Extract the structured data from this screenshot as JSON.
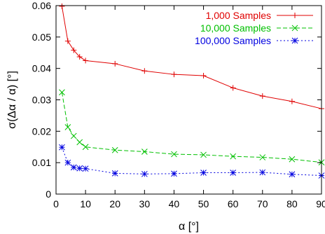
{
  "chart_data": {
    "type": "line",
    "xlabel": "α [°]",
    "ylabel": "σ(Δα / α) [°]",
    "xlim": [
      0,
      90
    ],
    "ylim": [
      0,
      0.06
    ],
    "xticks": [
      "0",
      "10",
      "20",
      "30",
      "40",
      "50",
      "60",
      "70",
      "80",
      "90"
    ],
    "yticks": [
      "0",
      "0.01",
      "0.02",
      "0.03",
      "0.04",
      "0.05",
      "0.06"
    ],
    "grid": false,
    "legend_position": "top-right",
    "series": [
      {
        "name": "1,000 Samples",
        "color": "#e00000",
        "line_style": "solid",
        "marker": "plus",
        "x": [
          2,
          4,
          6,
          8,
          10,
          20,
          30,
          40,
          50,
          60,
          70,
          80,
          90
        ],
        "y": [
          0.0598,
          0.0487,
          0.0458,
          0.0437,
          0.0425,
          0.0415,
          0.0392,
          0.0381,
          0.0377,
          0.0338,
          0.0312,
          0.0295,
          0.0272
        ]
      },
      {
        "name": "10,000 Samples",
        "color": "#00c000",
        "line_style": "dashed",
        "marker": "cross",
        "x": [
          2,
          4,
          6,
          8,
          10,
          20,
          30,
          40,
          50,
          60,
          70,
          80,
          90
        ],
        "y": [
          0.0324,
          0.0213,
          0.0185,
          0.0165,
          0.015,
          0.014,
          0.0135,
          0.0127,
          0.0125,
          0.012,
          0.0117,
          0.0111,
          0.0101
        ]
      },
      {
        "name": "100,000 Samples",
        "color": "#0000e0",
        "line_style": "dotted",
        "marker": "star",
        "x": [
          2,
          4,
          6,
          8,
          10,
          20,
          30,
          40,
          50,
          60,
          70,
          80,
          90
        ],
        "y": [
          0.0149,
          0.01,
          0.0085,
          0.0082,
          0.0081,
          0.0066,
          0.0064,
          0.0065,
          0.0068,
          0.0068,
          0.0069,
          0.0063,
          0.0059
        ]
      }
    ]
  }
}
